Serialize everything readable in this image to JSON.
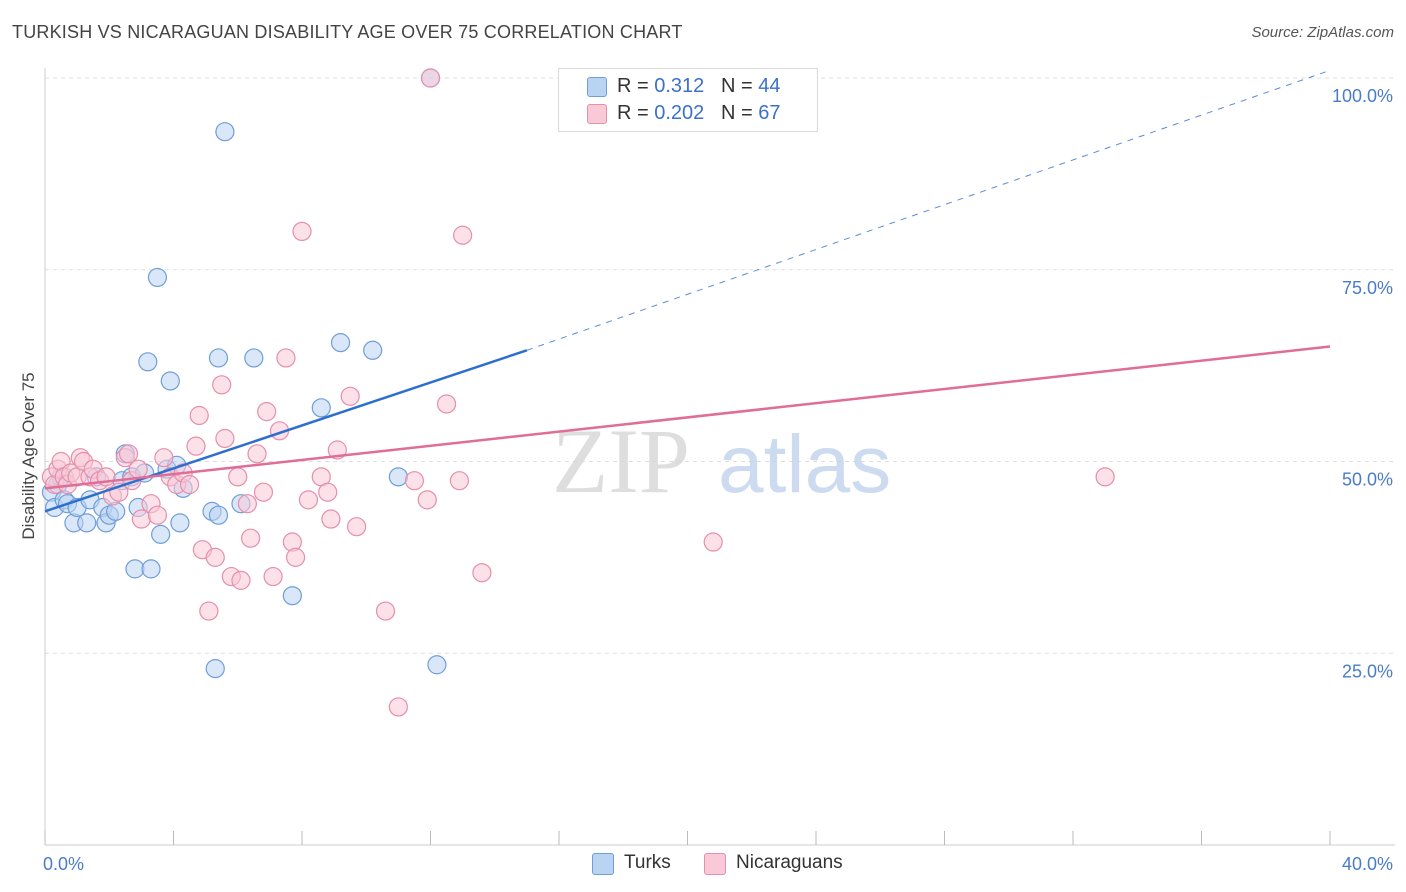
{
  "title": "TURKISH VS NICARAGUAN DISABILITY AGE OVER 75 CORRELATION CHART",
  "source": "Source: ZipAtlas.com",
  "watermark": {
    "zip": "ZIP",
    "atlas": "atlas"
  },
  "legend": {
    "r_label": "R =",
    "n_label": "N =",
    "turks": {
      "r": "0.312",
      "n": "44"
    },
    "nicaraguans": {
      "r": "0.202",
      "n": "67"
    }
  },
  "bottom_legend": {
    "turks": "Turks",
    "nicaraguans": "Nicaraguans"
  },
  "colors": {
    "turks_fill": "#b9d3f2",
    "turks_stroke": "#6f9ed9",
    "turks_line": "#2f6fcc",
    "nic_fill": "#f9c9d7",
    "nic_stroke": "#e58fab",
    "nic_line": "#e06d95",
    "grid": "#dddddd",
    "tick_text": "#4a7cc7"
  },
  "chart_data": {
    "type": "scatter",
    "title": "TURKISH VS NICARAGUAN DISABILITY AGE OVER 75 CORRELATION CHART",
    "xlabel": "",
    "ylabel": "Disability Age Over 75",
    "xlim": [
      0,
      40
    ],
    "ylim": [
      0,
      100
    ],
    "x_tick_labels": [
      "0.0%",
      "40.0%"
    ],
    "y_ticks": [
      25,
      50,
      75,
      100
    ],
    "y_tick_labels": [
      "25.0%",
      "50.0%",
      "75.0%",
      "100.0%"
    ],
    "series": [
      {
        "name": "Turks",
        "r": 0.312,
        "n": 44,
        "trend": {
          "x0": 0,
          "y0": 43.5,
          "x1": 15,
          "y1": 64.5,
          "dash_to_x": 40,
          "dash_to_y": 101
        },
        "points": [
          [
            0.2,
            46
          ],
          [
            0.3,
            44
          ],
          [
            0.4,
            47
          ],
          [
            0.5,
            48
          ],
          [
            0.6,
            45
          ],
          [
            0.7,
            44.5
          ],
          [
            0.9,
            42
          ],
          [
            1.0,
            44
          ],
          [
            1.3,
            42
          ],
          [
            1.4,
            45
          ],
          [
            1.6,
            48
          ],
          [
            1.8,
            44
          ],
          [
            1.9,
            42
          ],
          [
            2.0,
            43
          ],
          [
            2.2,
            43.5
          ],
          [
            2.4,
            47.5
          ],
          [
            2.5,
            51
          ],
          [
            2.7,
            48
          ],
          [
            2.8,
            36
          ],
          [
            2.9,
            44
          ],
          [
            3.1,
            48.5
          ],
          [
            3.2,
            63
          ],
          [
            3.3,
            36
          ],
          [
            3.5,
            74
          ],
          [
            3.6,
            40.5
          ],
          [
            3.8,
            49
          ],
          [
            3.9,
            60.5
          ],
          [
            4.1,
            49.5
          ],
          [
            4.2,
            42
          ],
          [
            4.3,
            46.5
          ],
          [
            5.2,
            43.5
          ],
          [
            5.3,
            23
          ],
          [
            5.4,
            63.5
          ],
          [
            5.6,
            93
          ],
          [
            6.1,
            44.5
          ],
          [
            6.5,
            63.5
          ],
          [
            7.7,
            32.5
          ],
          [
            8.6,
            57
          ],
          [
            9.2,
            65.5
          ],
          [
            10.2,
            64.5
          ],
          [
            11.0,
            48
          ],
          [
            12.0,
            100
          ],
          [
            12.2,
            23.5
          ],
          [
            5.4,
            43
          ]
        ]
      },
      {
        "name": "Nicaraguans",
        "r": 0.202,
        "n": 67,
        "trend": {
          "x0": 0,
          "y0": 46.5,
          "x1": 40,
          "y1": 65
        },
        "points": [
          [
            0.2,
            48
          ],
          [
            0.3,
            47
          ],
          [
            0.4,
            49
          ],
          [
            0.5,
            50
          ],
          [
            0.6,
            48
          ],
          [
            0.7,
            47
          ],
          [
            0.8,
            48.5
          ],
          [
            1.0,
            48
          ],
          [
            1.1,
            50.5
          ],
          [
            1.2,
            50
          ],
          [
            1.4,
            48
          ],
          [
            1.5,
            49
          ],
          [
            1.7,
            47.5
          ],
          [
            1.9,
            48
          ],
          [
            2.1,
            45.5
          ],
          [
            2.3,
            46
          ],
          [
            2.5,
            50.5
          ],
          [
            2.6,
            51
          ],
          [
            2.7,
            47.5
          ],
          [
            2.9,
            49
          ],
          [
            3.0,
            42.5
          ],
          [
            3.3,
            44.5
          ],
          [
            3.5,
            43
          ],
          [
            3.7,
            50.5
          ],
          [
            3.9,
            48
          ],
          [
            4.1,
            47
          ],
          [
            4.3,
            48.5
          ],
          [
            4.5,
            47
          ],
          [
            4.7,
            52
          ],
          [
            4.8,
            56
          ],
          [
            4.9,
            38.5
          ],
          [
            5.1,
            30.5
          ],
          [
            5.3,
            37.5
          ],
          [
            5.5,
            60
          ],
          [
            5.6,
            53
          ],
          [
            5.8,
            35
          ],
          [
            6.0,
            48
          ],
          [
            6.1,
            34.5
          ],
          [
            6.3,
            44.5
          ],
          [
            6.4,
            40
          ],
          [
            6.6,
            51
          ],
          [
            6.8,
            46
          ],
          [
            6.9,
            56.5
          ],
          [
            7.1,
            35
          ],
          [
            7.3,
            54
          ],
          [
            7.5,
            63.5
          ],
          [
            7.7,
            39.5
          ],
          [
            7.8,
            37.5
          ],
          [
            8.0,
            80
          ],
          [
            8.2,
            45
          ],
          [
            8.6,
            48
          ],
          [
            8.8,
            46
          ],
          [
            8.9,
            42.5
          ],
          [
            9.1,
            51.5
          ],
          [
            9.5,
            58.5
          ],
          [
            9.7,
            41.5
          ],
          [
            10.6,
            30.5
          ],
          [
            11.0,
            18
          ],
          [
            11.5,
            47.5
          ],
          [
            11.9,
            45
          ],
          [
            12.0,
            100
          ],
          [
            12.5,
            57.5
          ],
          [
            12.9,
            47.5
          ],
          [
            13.0,
            79.5
          ],
          [
            13.6,
            35.5
          ],
          [
            20.8,
            39.5
          ],
          [
            33.0,
            48
          ]
        ]
      }
    ]
  }
}
